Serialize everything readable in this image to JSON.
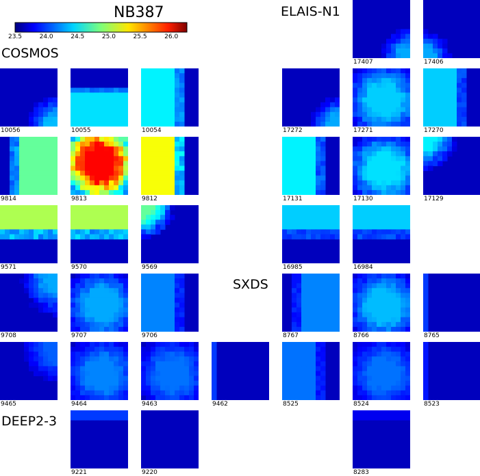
{
  "chart_data": {
    "type": "heatmap",
    "title": "NB387",
    "colorbar": {
      "range": [
        23.5,
        26.25
      ],
      "ticks": [
        "23.5",
        "24.0",
        "24.5",
        "25.0",
        "25.5",
        "26.0"
      ],
      "colormap": "jet"
    },
    "fields": [
      {
        "name": "COSMOS",
        "tiles": [
          {
            "id": "10056",
            "pattern": "corner-br",
            "level": 24.35
          },
          {
            "id": "10055",
            "pattern": "band-bottom",
            "level": 24.45
          },
          {
            "id": "10054",
            "pattern": "band-left",
            "level": 24.5
          },
          {
            "id": "9814",
            "pattern": "right-half",
            "level": 24.8
          },
          {
            "id": "9813",
            "pattern": "core-hot",
            "level": 25.9
          },
          {
            "id": "9812",
            "pattern": "left-half",
            "level": 25.2
          },
          {
            "id": "9571",
            "pattern": "band-top",
            "level": 25.0
          },
          {
            "id": "9570",
            "pattern": "band-top",
            "level": 25.0
          },
          {
            "id": "9569",
            "pattern": "corner-tl",
            "level": 24.8
          },
          {
            "id": "9708",
            "pattern": "corner-tr",
            "level": 24.3
          },
          {
            "id": "9707",
            "pattern": "most",
            "level": 24.3
          },
          {
            "id": "9706",
            "pattern": "left-half",
            "level": 24.2
          },
          {
            "id": "9465",
            "pattern": "corner-tr",
            "level": 24.1
          },
          {
            "id": "9464",
            "pattern": "most",
            "level": 24.2
          },
          {
            "id": "9463",
            "pattern": "most",
            "level": 24.15
          },
          {
            "id": "9462",
            "pattern": "edge-left",
            "level": 24.0
          }
        ]
      },
      {
        "name": "DEEP2-3",
        "tiles": [
          {
            "id": "9221",
            "pattern": "strip-top",
            "level": 24.0
          },
          {
            "id": "9220",
            "pattern": "empty",
            "level": 23.5
          }
        ]
      },
      {
        "name": "ELAIS-N1",
        "tiles": [
          {
            "id": "17407",
            "pattern": "corner-br",
            "level": 24.3
          },
          {
            "id": "17406",
            "pattern": "corner-bl",
            "level": 24.3
          },
          {
            "id": "17272",
            "pattern": "corner-br",
            "level": 24.3
          },
          {
            "id": "17271",
            "pattern": "most",
            "level": 24.4
          },
          {
            "id": "17270",
            "pattern": "left-half",
            "level": 24.4
          },
          {
            "id": "17131",
            "pattern": "left-half",
            "level": 24.5
          },
          {
            "id": "17130",
            "pattern": "most",
            "level": 24.45
          },
          {
            "id": "17129",
            "pattern": "corner-tl",
            "level": 24.5
          },
          {
            "id": "16985",
            "pattern": "band-top",
            "level": 24.4
          },
          {
            "id": "16984",
            "pattern": "band-top",
            "level": 24.4
          }
        ]
      },
      {
        "name": "SXDS",
        "tiles": [
          {
            "id": "8767",
            "pattern": "right-half",
            "level": 24.2
          },
          {
            "id": "8766",
            "pattern": "most",
            "level": 24.35
          },
          {
            "id": "8765",
            "pattern": "edge-left",
            "level": 24.0
          },
          {
            "id": "8525",
            "pattern": "left-half",
            "level": 24.15
          },
          {
            "id": "8524",
            "pattern": "most",
            "level": 24.15
          },
          {
            "id": "8523",
            "pattern": "edge-left",
            "level": 23.9
          },
          {
            "id": "8283",
            "pattern": "strip-top",
            "level": 23.8
          }
        ]
      }
    ]
  }
}
